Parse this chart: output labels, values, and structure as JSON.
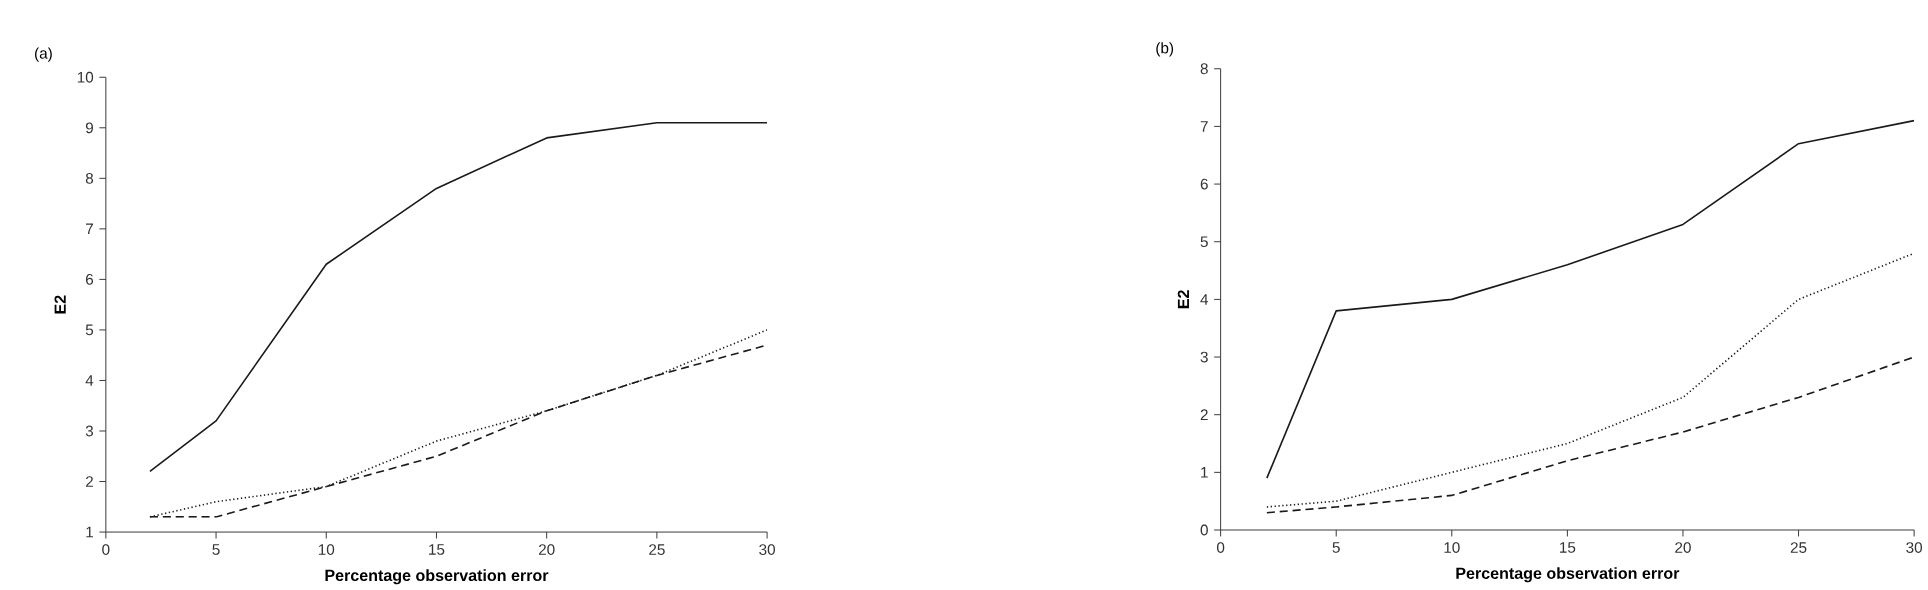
{
  "chart_data": [
    {
      "type": "line",
      "title": "(a)",
      "xlabel": "Percentage observation error",
      "ylabel": "E2",
      "x": [
        2,
        5,
        10,
        15,
        20,
        25,
        30
      ],
      "xlim": [
        0,
        30
      ],
      "xticks": [
        0,
        5,
        10,
        15,
        20,
        25,
        30
      ],
      "ylim": [
        1,
        10
      ],
      "yticks": [
        1,
        2,
        3,
        4,
        5,
        6,
        7,
        8,
        9,
        10
      ],
      "grid": false,
      "marker": "none",
      "series": [
        {
          "color": "#1a1a1a",
          "line_style": "solid",
          "values": [
            2.2,
            3.2,
            6.3,
            7.8,
            8.8,
            9.1,
            9.1
          ]
        },
        {
          "color": "#1a1a1a",
          "line_style": "dotted",
          "values": [
            1.3,
            1.6,
            1.9,
            2.8,
            3.4,
            4.1,
            5.0
          ]
        },
        {
          "color": "#1a1a1a",
          "line_style": "dashed",
          "values": [
            1.3,
            1.3,
            1.9,
            2.5,
            3.4,
            4.1,
            4.7
          ]
        }
      ]
    },
    {
      "type": "line",
      "title": "(b)",
      "xlabel": "Percentage observation error",
      "ylabel": "E2",
      "x": [
        2,
        5,
        10,
        15,
        20,
        25,
        30
      ],
      "xlim": [
        0,
        30
      ],
      "xticks": [
        0,
        5,
        10,
        15,
        20,
        25,
        30
      ],
      "ylim": [
        0,
        8
      ],
      "yticks": [
        0,
        1,
        2,
        3,
        4,
        5,
        6,
        7,
        8
      ],
      "grid": false,
      "marker": "none",
      "series": [
        {
          "color": "#1a1a1a",
          "line_style": "solid",
          "values": [
            0.9,
            3.8,
            4.0,
            4.6,
            5.3,
            6.7,
            7.1
          ]
        },
        {
          "color": "#1a1a1a",
          "line_style": "dotted",
          "values": [
            0.4,
            0.5,
            1.0,
            1.5,
            2.3,
            4.0,
            4.8
          ]
        },
        {
          "color": "#1a1a1a",
          "line_style": "dashed",
          "values": [
            0.3,
            0.4,
            0.6,
            1.2,
            1.7,
            2.3,
            3.0
          ]
        }
      ]
    }
  ]
}
